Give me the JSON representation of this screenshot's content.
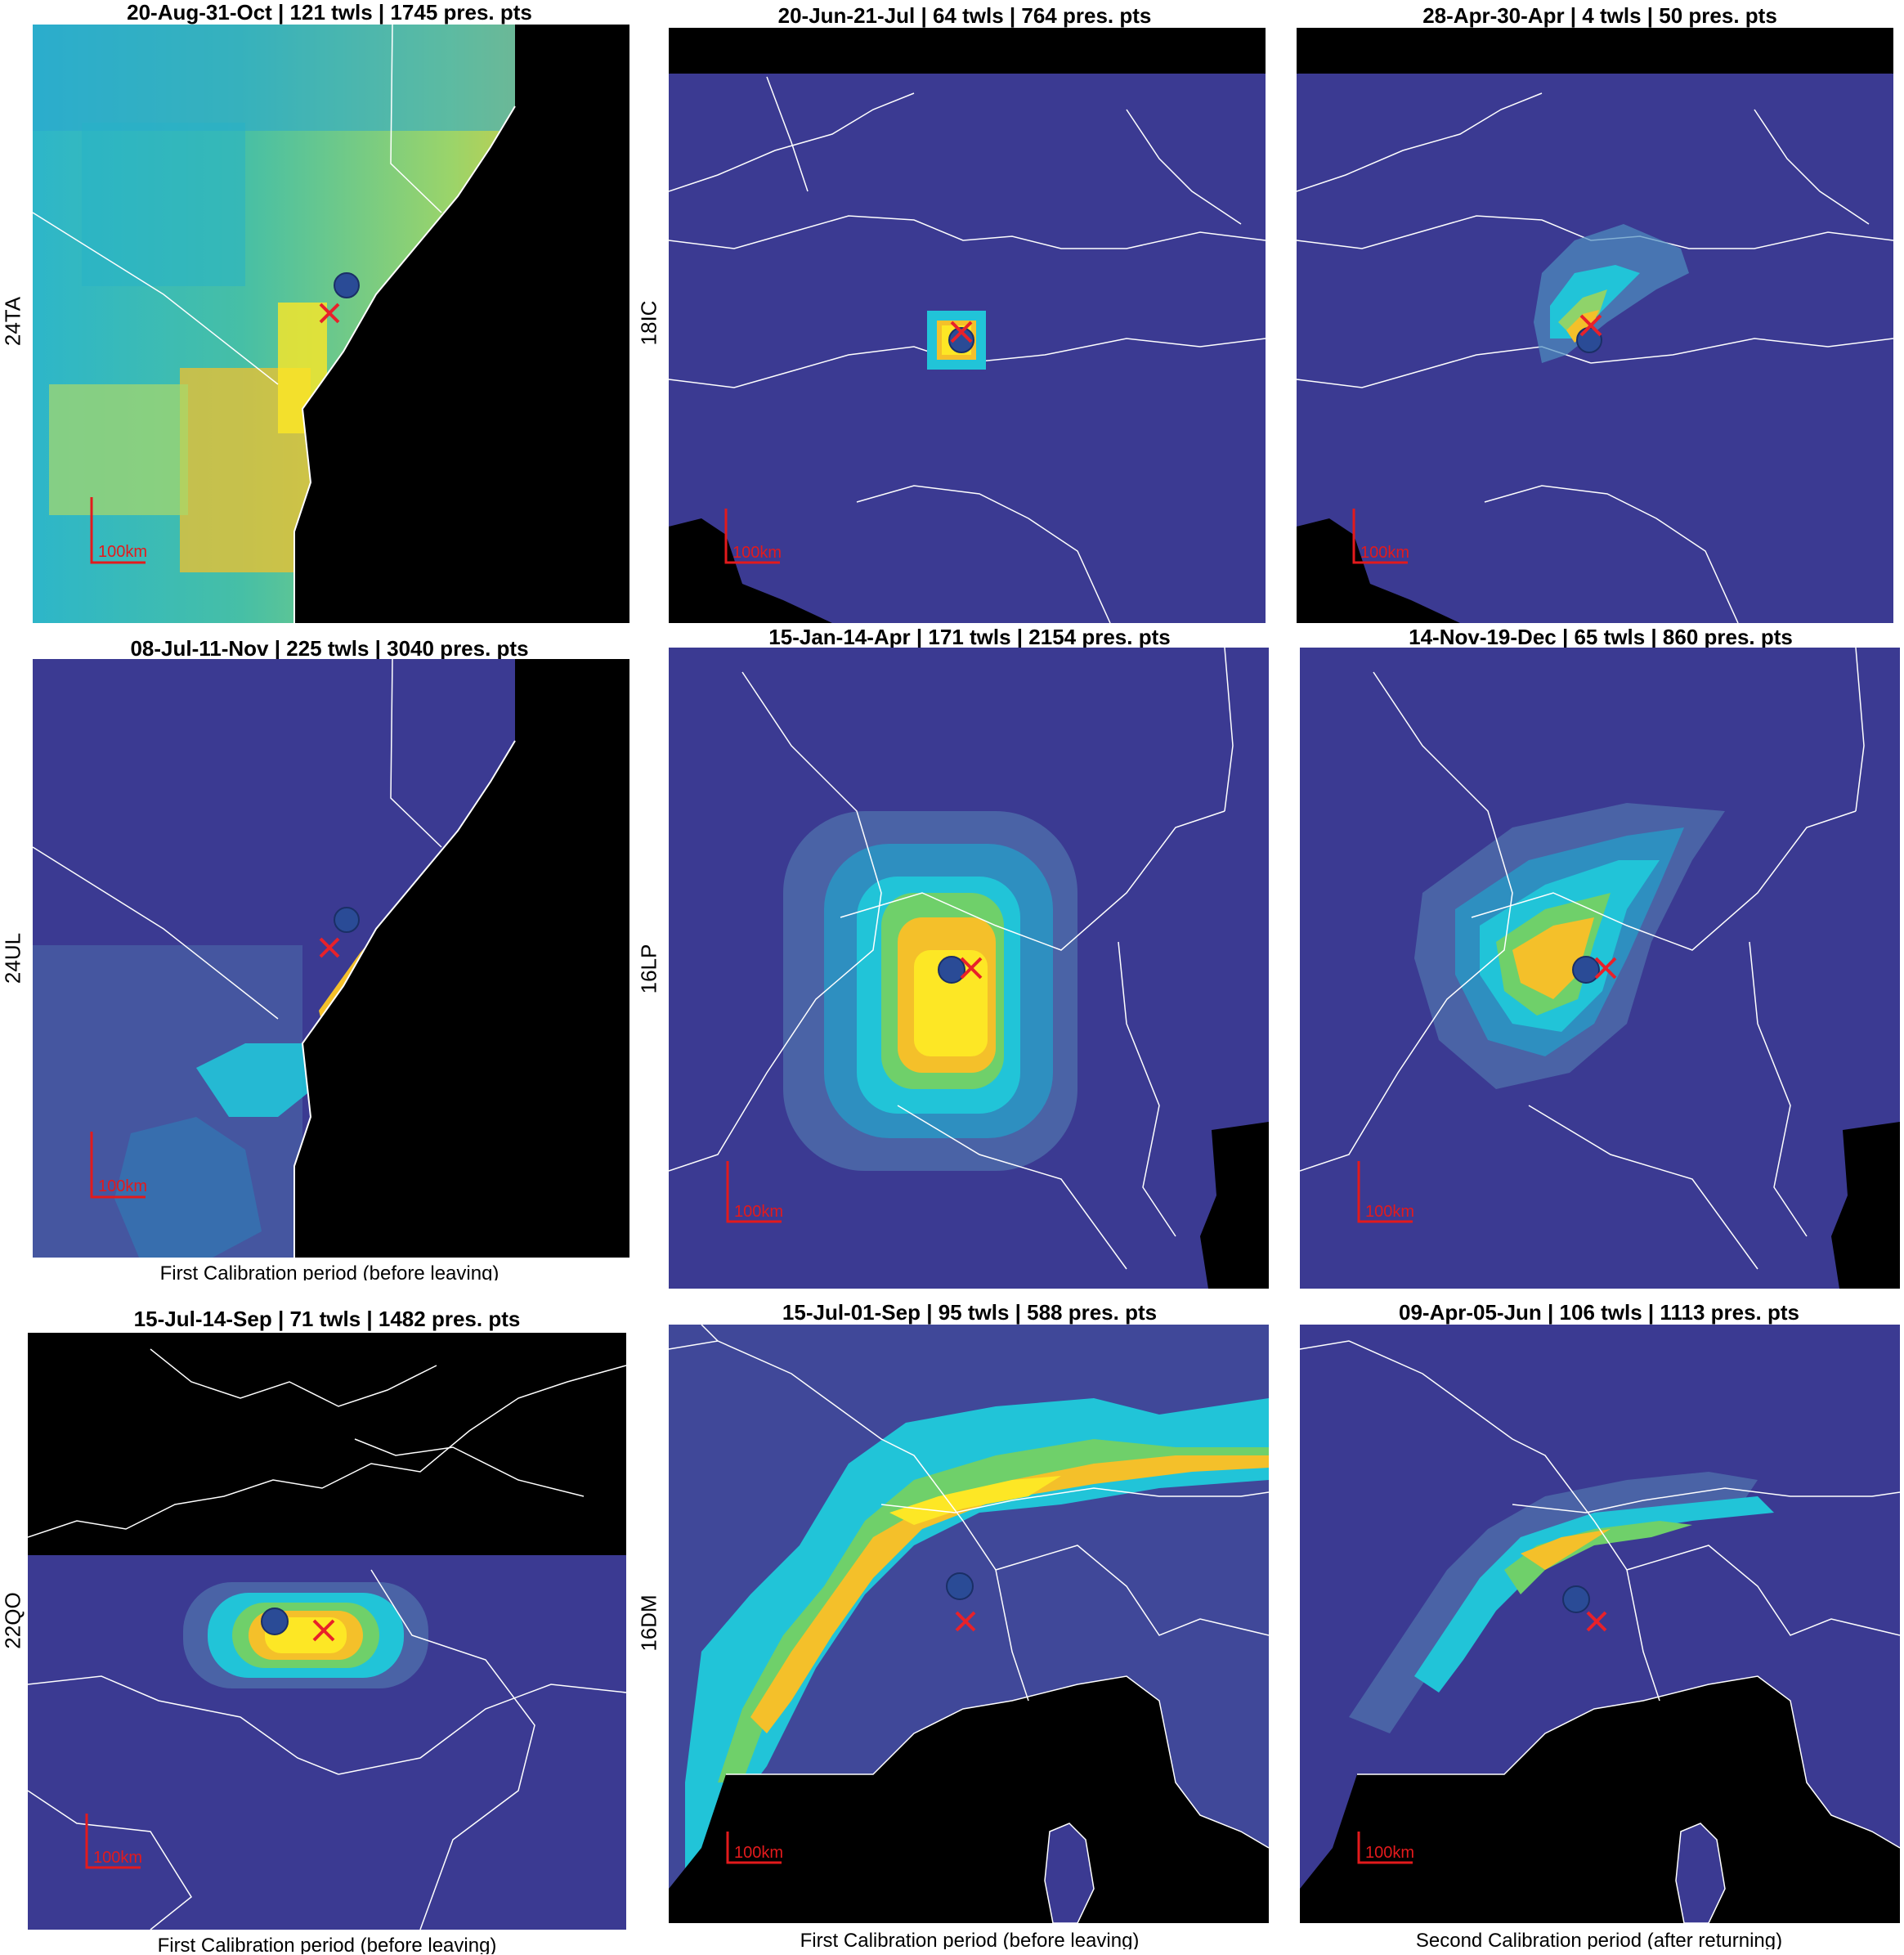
{
  "scale_label": "100km",
  "colors": {
    "background_low": "#3b3a92",
    "land_mask": "#000000",
    "high": "#fde725",
    "mid": "#5ec962",
    "cyan": "#21c4d8",
    "orange": "#f4a92a",
    "marker_circle": "#2a4b96",
    "marker_cross": "#e8212a",
    "scale_bar": "#e31a1c",
    "borders": "#ffffff"
  },
  "rows": [
    {
      "label": "24TA"
    },
    {
      "label": "18IC"
    },
    {
      "label": "24UL"
    },
    {
      "label": "16LP"
    },
    {
      "label": "22QO"
    },
    {
      "label": "16DM"
    }
  ],
  "panels": [
    {
      "title": "20-Aug-31-Oct | 121 twls | 1745 pres. pts"
    },
    {
      "title": "20-Jun-21-Jul | 64 twls | 764 pres. pts"
    },
    {
      "title": "28-Apr-30-Apr | 4 twls | 50 pres. pts"
    },
    {
      "title": "08-Jul-11-Nov | 225 twls | 3040 pres. pts"
    },
    {
      "title": "15-Jan-14-Apr | 171 twls | 2154 pres. pts"
    },
    {
      "title": "14-Nov-19-Dec | 65 twls | 860 pres. pts"
    },
    {
      "title": "15-Jul-14-Sep | 71 twls | 1482 pres. pts"
    },
    {
      "title": "15-Jul-01-Sep | 95 twls | 588 pres. pts"
    },
    {
      "title": "09-Apr-05-Jun | 106 twls | 1113 pres. pts"
    }
  ],
  "captions": {
    "first_before_leaving": "First Calibration period (before leaving)",
    "second_after_returning": "Second Calibration period (after returning)"
  }
}
